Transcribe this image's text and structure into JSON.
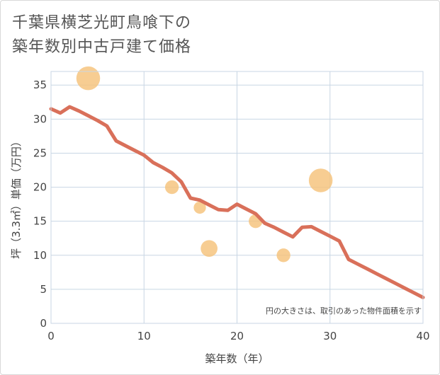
{
  "chart_data": {
    "type": "scatter",
    "title_lines": [
      "千葉県横芝光町鳥喰下の",
      "築年数別中古戸建て価格"
    ],
    "xlabel": "築年数（年）",
    "ylabel": "坪（3.3㎡）単価（万円）",
    "xlim": [
      0,
      40
    ],
    "ylim": [
      0,
      37
    ],
    "xticks": [
      0,
      10,
      20,
      30,
      40
    ],
    "yticks": [
      0,
      5,
      10,
      15,
      20,
      25,
      30,
      35
    ],
    "grid": true,
    "note": "円の大きさは、取引のあった物件面積を示す",
    "colors": {
      "line": "#d9705a",
      "bubble": "#f5c27a",
      "grid": "#c8d6e4",
      "plot_border": "#c8d6e4"
    },
    "scatter_points": [
      {
        "x": 4,
        "y": 36,
        "size": 3
      },
      {
        "x": 13,
        "y": 20,
        "size": 1
      },
      {
        "x": 16,
        "y": 17,
        "size": 0.8
      },
      {
        "x": 17,
        "y": 11,
        "size": 1.5
      },
      {
        "x": 22,
        "y": 15,
        "size": 1
      },
      {
        "x": 25,
        "y": 10,
        "size": 1
      },
      {
        "x": 29,
        "y": 21,
        "size": 3
      }
    ],
    "line": {
      "x": [
        0,
        1,
        2,
        3,
        4,
        5,
        6,
        7,
        8,
        9,
        10,
        11,
        12,
        13,
        14,
        15,
        16,
        17,
        18,
        19,
        20,
        21,
        22,
        23,
        24,
        25,
        26,
        27,
        28,
        29,
        30,
        31,
        32,
        33,
        34,
        35,
        36,
        37,
        38,
        39,
        40
      ],
      "y": [
        31.5,
        30.9,
        31.8,
        31.2,
        30.5,
        29.8,
        29.0,
        26.8,
        26.1,
        25.4,
        24.7,
        23.6,
        22.9,
        22.1,
        20.8,
        18.4,
        18.1,
        17.4,
        16.7,
        16.6,
        17.5,
        16.8,
        16.1,
        14.7,
        14.1,
        13.4,
        12.7,
        14.1,
        14.2,
        13.5,
        12.8,
        12.1,
        9.4,
        8.7,
        8.0,
        7.3,
        6.6,
        5.9,
        5.2,
        4.5,
        3.8
      ]
    }
  }
}
